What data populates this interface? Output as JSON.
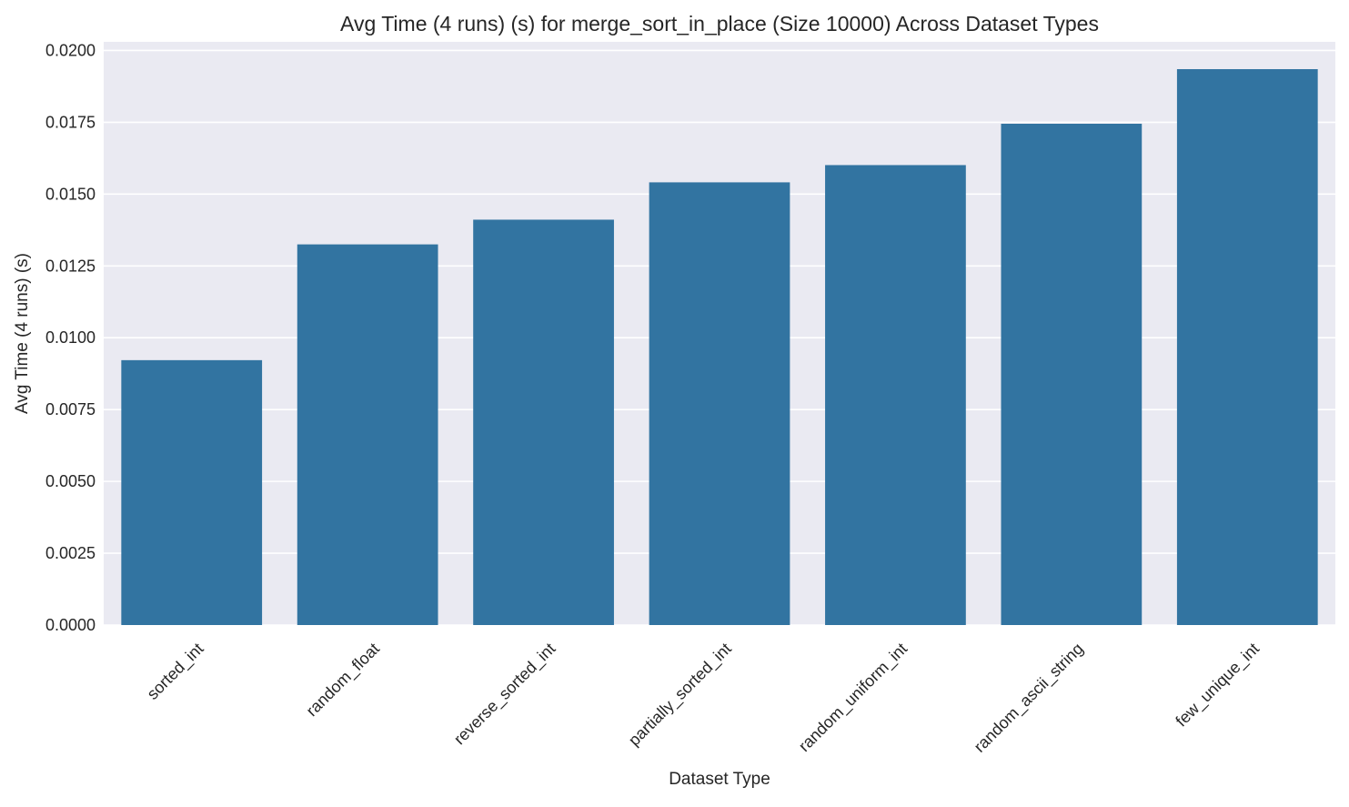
{
  "chart_data": {
    "type": "bar",
    "title": "Avg Time (4 runs) (s) for merge_sort_in_place (Size 10000) Across Dataset Types",
    "xlabel": "Dataset Type",
    "ylabel": "Avg Time (4 runs) (s)",
    "categories": [
      "sorted_int",
      "random_float",
      "reverse_sorted_int",
      "partially_sorted_int",
      "random_uniform_int",
      "random_ascii_string",
      "few_unique_int"
    ],
    "values": [
      0.00922,
      0.01325,
      0.01411,
      0.01541,
      0.01601,
      0.01745,
      0.01935
    ],
    "ylim": [
      0,
      0.0203
    ],
    "yticks": [
      0.0,
      0.0025,
      0.005,
      0.0075,
      0.01,
      0.0125,
      0.015,
      0.0175,
      0.02
    ],
    "ytick_labels": [
      "0.0000",
      "0.0025",
      "0.0050",
      "0.0075",
      "0.0100",
      "0.0125",
      "0.0150",
      "0.0175",
      "0.0200"
    ],
    "grid": true,
    "legend": "none",
    "colors": {
      "bar": "#3274a1",
      "plot_background": "#eaeaf2",
      "grid": "#ffffff",
      "text": "#262626"
    }
  }
}
